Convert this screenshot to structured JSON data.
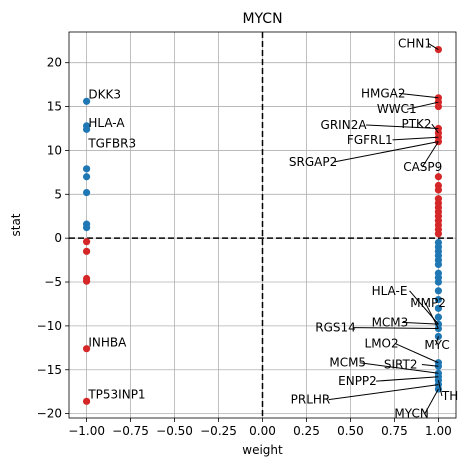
{
  "chart_data": {
    "type": "scatter",
    "title": "MYCN",
    "xlabel": "weight",
    "ylabel": "stat",
    "xlim": [
      -1.1,
      1.1
    ],
    "ylim": [
      -20.5,
      23.5
    ],
    "xticks": [
      -1.0,
      -0.75,
      -0.5,
      -0.25,
      0.0,
      0.25,
      0.5,
      0.75,
      1.0
    ],
    "xtick_labels": [
      "−1.00",
      "−0.75",
      "−0.50",
      "−0.25",
      "0.00",
      "0.25",
      "0.50",
      "0.75",
      "1.00"
    ],
    "yticks": [
      -20,
      -15,
      -10,
      -5,
      0,
      5,
      10,
      15,
      20
    ],
    "ytick_labels": [
      "−20",
      "−15",
      "−10",
      "−5",
      "0",
      "5",
      "10",
      "15",
      "20"
    ],
    "grid": true,
    "reference_lines": {
      "x": 0,
      "y": 0
    },
    "colors": {
      "positive": "#d62728",
      "negative": "#1f77b4"
    },
    "series": [
      {
        "color": "#d62728",
        "points": [
          [
            1,
            21.5
          ],
          [
            1,
            16.0
          ],
          [
            1,
            15.5
          ],
          [
            1,
            15.0
          ],
          [
            1,
            12.5
          ],
          [
            1,
            12.0
          ],
          [
            1,
            11.5
          ],
          [
            1,
            11.0
          ],
          [
            1,
            7.0
          ],
          [
            1,
            6.0
          ],
          [
            1,
            5.5
          ],
          [
            1,
            4.5
          ],
          [
            1,
            4.0
          ],
          [
            1,
            3.5
          ],
          [
            1,
            3.0
          ],
          [
            1,
            2.5
          ],
          [
            1,
            2.0
          ],
          [
            1,
            1.5
          ],
          [
            1,
            1.0
          ],
          [
            1,
            0.5
          ],
          [
            -1,
            -0.4
          ],
          [
            -1,
            -1.5
          ],
          [
            -1,
            -4.6
          ],
          [
            -1,
            -4.9
          ],
          [
            -1,
            -12.6
          ],
          [
            -1,
            -18.6
          ]
        ]
      },
      {
        "color": "#1f77b4",
        "points": [
          [
            -1,
            15.6
          ],
          [
            -1,
            12.8
          ],
          [
            -1,
            12.4
          ],
          [
            -1,
            7.9
          ],
          [
            -1,
            7.0
          ],
          [
            -1,
            5.2
          ],
          [
            -1,
            1.6
          ],
          [
            -1,
            1.2
          ],
          [
            1,
            -0.5
          ],
          [
            1,
            -1.0
          ],
          [
            1,
            -1.5
          ],
          [
            1,
            -2.0
          ],
          [
            1,
            -2.5
          ],
          [
            1,
            -3.0
          ],
          [
            1,
            -4.0
          ],
          [
            1,
            -4.5
          ],
          [
            1,
            -5.0
          ],
          [
            1,
            -6.0
          ],
          [
            1,
            -7.0
          ],
          [
            1,
            -8.0
          ],
          [
            1,
            -9.0
          ],
          [
            1,
            -9.8
          ],
          [
            1,
            -10.3
          ],
          [
            1,
            -11.2
          ],
          [
            1,
            -14.2
          ],
          [
            1,
            -14.6
          ],
          [
            1,
            -15.4
          ],
          [
            1,
            -15.8
          ],
          [
            1,
            -16.2
          ],
          [
            1,
            -16.7
          ],
          [
            1,
            -17.2
          ]
        ]
      }
    ],
    "annotations": [
      {
        "text": "CHN1",
        "point": [
          1,
          21.5
        ],
        "text_at": [
          0.77,
          22.2
        ],
        "arrow": true
      },
      {
        "text": "HMGA2",
        "point": [
          1,
          16.0
        ],
        "text_at": [
          0.56,
          16.5
        ],
        "arrow": true
      },
      {
        "text": "WWC1",
        "point": [
          1,
          15.5
        ],
        "text_at": [
          0.65,
          14.7
        ],
        "arrow": true
      },
      {
        "text": "GRIN2A",
        "point": [
          1,
          12.5
        ],
        "text_at": [
          0.33,
          12.9
        ],
        "arrow": true
      },
      {
        "text": "PTK2",
        "point": [
          1,
          12.0
        ],
        "text_at": [
          0.79,
          13.0
        ],
        "arrow": true
      },
      {
        "text": "FGFRL1",
        "point": [
          1,
          11.5
        ],
        "text_at": [
          0.48,
          11.2
        ],
        "arrow": true
      },
      {
        "text": "SRGAP2",
        "point": [
          1,
          11.0
        ],
        "text_at": [
          0.15,
          8.7
        ],
        "arrow": true
      },
      {
        "text": "CASP9",
        "point": [
          1,
          11.0
        ],
        "text_at": [
          0.8,
          8.1
        ],
        "arrow": true
      },
      {
        "text": "DKK3",
        "point": [
          -1,
          15.6
        ],
        "text_at": [
          -0.99,
          16.4
        ],
        "arrow": false
      },
      {
        "text": "HLA-A",
        "point": [
          -1,
          12.8
        ],
        "text_at": [
          -0.99,
          13.1
        ],
        "arrow": false
      },
      {
        "text": "TGFBR3",
        "point": [
          -1,
          12.4
        ],
        "text_at": [
          -0.99,
          10.8
        ],
        "arrow": false
      },
      {
        "text": "INHBA",
        "point": [
          -1,
          -12.6
        ],
        "text_at": [
          -0.99,
          -11.9
        ],
        "arrow": false
      },
      {
        "text": "TP53INP1",
        "point": [
          -1,
          -18.6
        ],
        "text_at": [
          -0.99,
          -17.8
        ],
        "arrow": false
      },
      {
        "text": "HLA-E",
        "point": [
          1,
          -9.8
        ],
        "text_at": [
          0.62,
          -6.0
        ],
        "arrow": true
      },
      {
        "text": "MMP2",
        "point": [
          1,
          -10.3
        ],
        "text_at": [
          0.84,
          -7.4
        ],
        "arrow": true
      },
      {
        "text": "MCM3",
        "point": [
          1,
          -9.8
        ],
        "text_at": [
          0.62,
          -9.6
        ],
        "arrow": true
      },
      {
        "text": "RGS14",
        "point": [
          1,
          -10.3
        ],
        "text_at": [
          0.3,
          -10.2
        ],
        "arrow": true
      },
      {
        "text": "MYC",
        "point": [
          1,
          -11.2
        ],
        "text_at": [
          0.92,
          -12.2
        ],
        "arrow": true
      },
      {
        "text": "LMO2",
        "point": [
          1,
          -14.2
        ],
        "text_at": [
          0.58,
          -12.0
        ],
        "arrow": true
      },
      {
        "text": "SIRT2",
        "point": [
          1,
          -14.6
        ],
        "text_at": [
          0.69,
          -14.4
        ],
        "arrow": true
      },
      {
        "text": "MCM5",
        "point": [
          1,
          -15.4
        ],
        "text_at": [
          0.38,
          -14.2
        ],
        "arrow": true
      },
      {
        "text": "ENPP2",
        "point": [
          1,
          -15.8
        ],
        "text_at": [
          0.43,
          -16.3
        ],
        "arrow": true
      },
      {
        "text": "TH",
        "point": [
          1,
          -16.2
        ],
        "text_at": [
          1.02,
          -18.0
        ],
        "arrow": true
      },
      {
        "text": "PRLHR",
        "point": [
          1,
          -16.7
        ],
        "text_at": [
          0.16,
          -18.4
        ],
        "arrow": true
      },
      {
        "text": "MYCN",
        "point": [
          1,
          -17.2
        ],
        "text_at": [
          0.75,
          -20.0
        ],
        "arrow": true
      }
    ]
  }
}
